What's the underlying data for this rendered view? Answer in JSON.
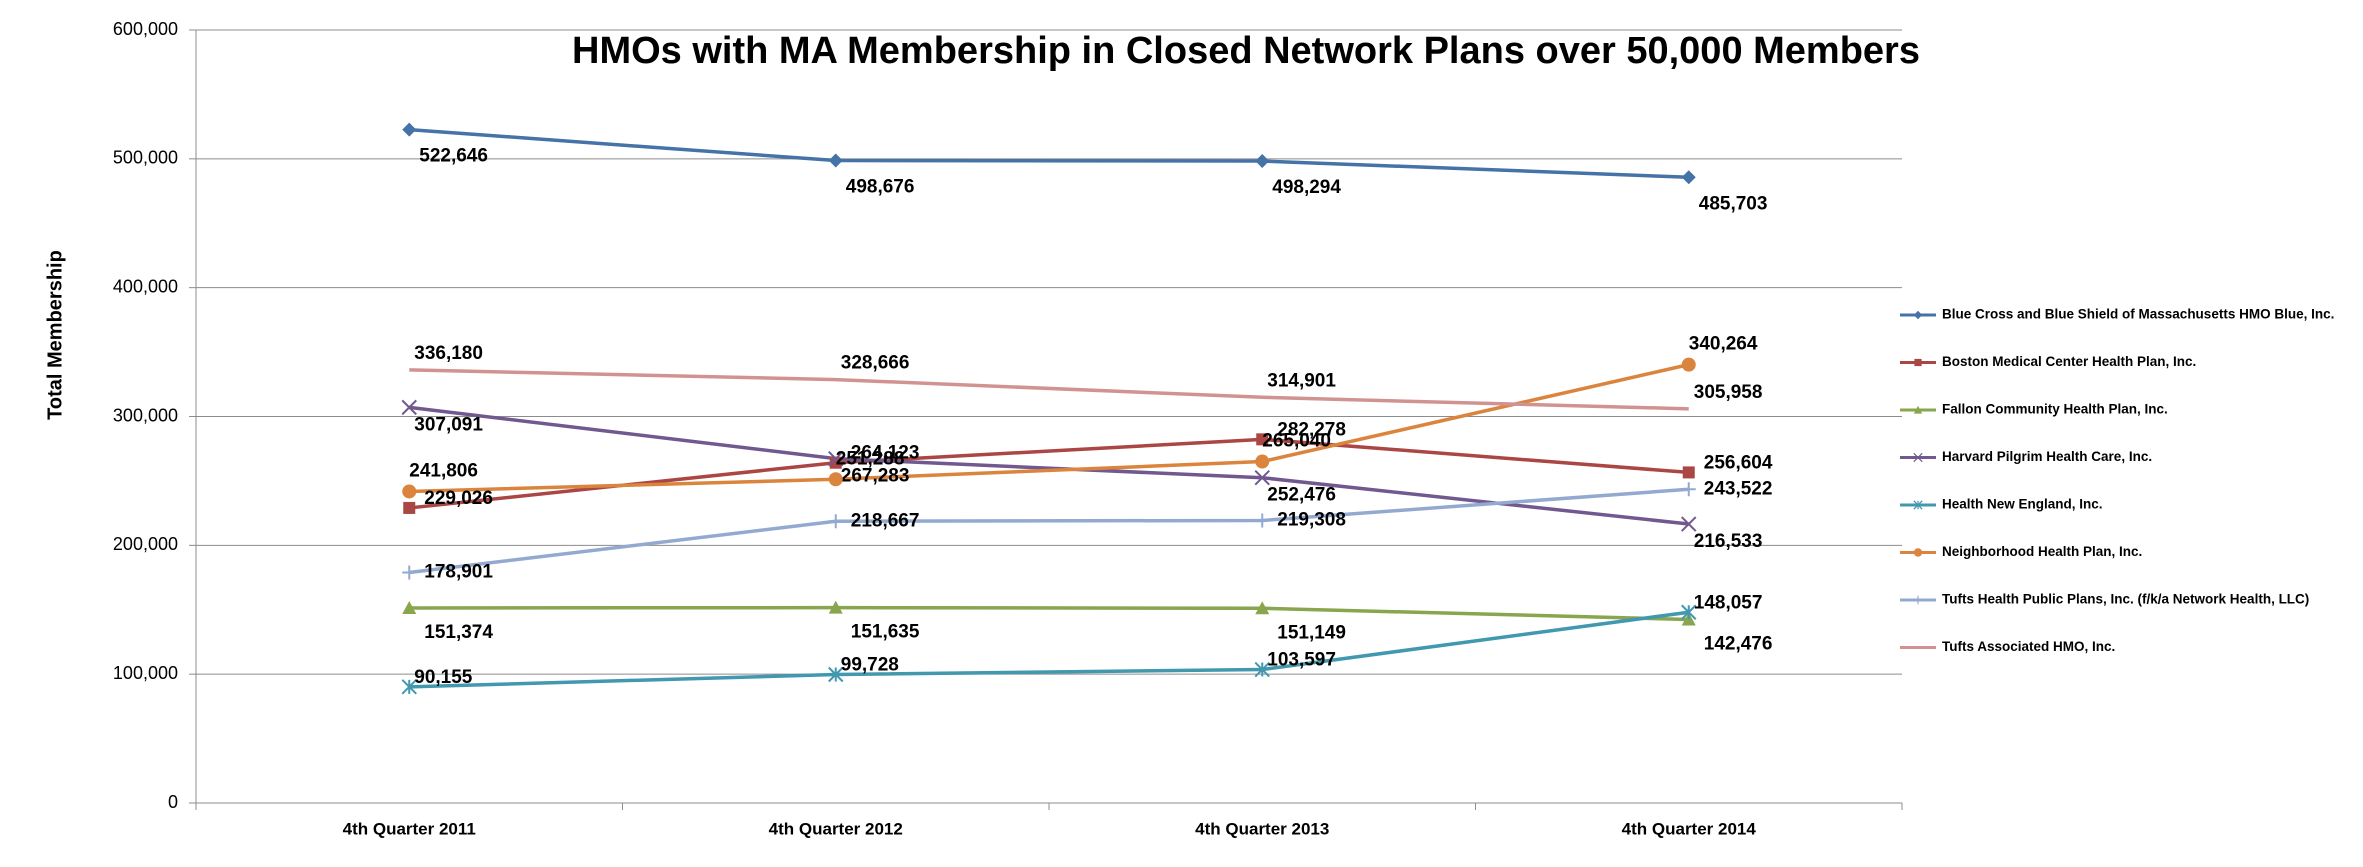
{
  "chart_data": {
    "type": "line",
    "title": "HMOs with MA Membership in Closed Network Plans over 50,000 Members",
    "y_label": "Total Membership",
    "categories": [
      "4th Quarter 2011",
      "4th Quarter 2012",
      "4th Quarter 2013",
      "4th Quarter 2014"
    ],
    "ylim": [
      0,
      600000
    ],
    "yticks": [
      {
        "value": 0,
        "label": "0"
      },
      {
        "value": 100000,
        "label": "100,000"
      },
      {
        "value": 200000,
        "label": "200,000"
      },
      {
        "value": 300000,
        "label": "300,000"
      },
      {
        "value": 400000,
        "label": "400,000"
      },
      {
        "value": 500000,
        "label": "500,000"
      },
      {
        "value": 600000,
        "label": "600,000"
      }
    ],
    "grid": true,
    "legend": "right",
    "series": [
      {
        "name": "Blue Cross and Blue Shield of Massachusetts HMO Blue, Inc.",
        "color": "#4572a7",
        "label_color": "#60609c",
        "marker": "diamond",
        "values": [
          522646,
          498676,
          498294,
          485703
        ],
        "value_labels": [
          "522,646",
          "498,676",
          "498,294",
          "485,703"
        ]
      },
      {
        "name": "Boston Medical Center Health Plan, Inc.",
        "color": "#aa4643",
        "label_color": "#8c5c5c",
        "marker": "square",
        "values": [
          229026,
          264123,
          282278,
          256604
        ],
        "value_labels": [
          "229,026",
          "264,123",
          "282,278",
          "256,604"
        ]
      },
      {
        "name": "Fallon Community Health Plan, Inc.",
        "color": "#89a54e",
        "label_color": "#9c9c2c",
        "marker": "triangle",
        "values": [
          151374,
          151635,
          151149,
          142476
        ],
        "value_labels": [
          "151,374",
          "151,635",
          "151,149",
          "142,476"
        ]
      },
      {
        "name": "Harvard Pilgrim Health Care, Inc.",
        "color": "#71588f",
        "label_color": "#5e5e9a",
        "marker": "x",
        "values": [
          307091,
          267283,
          252476,
          216533
        ],
        "value_labels": [
          "307,091",
          "267,283",
          "252,476",
          "216,533"
        ]
      },
      {
        "name": "Health New England, Inc.",
        "color": "#4198af",
        "label_color": "#1fc3f0",
        "marker": "star",
        "values": [
          90155,
          99728,
          103597,
          148057
        ],
        "value_labels": [
          "90,155",
          "99,728",
          "103,597",
          "148,057"
        ]
      },
      {
        "name": "Neighborhood Health Plan, Inc.",
        "color": "#db843d",
        "label_color": "#f08080",
        "marker": "circle",
        "values": [
          241806,
          251288,
          265040,
          340264
        ],
        "value_labels": [
          "241,806",
          "251,288",
          "265,040",
          "340,264"
        ]
      },
      {
        "name": "Tufts Health Public Plans, Inc. (f/k/a Network Health, LLC)",
        "color": "#93a9cf",
        "label_color": "#a8c8ee",
        "marker": "plus",
        "values": [
          178901,
          218667,
          219308,
          243522
        ],
        "value_labels": [
          "178,901",
          "218,667",
          "219,308",
          "243,522"
        ]
      },
      {
        "name": "Tufts Associated HMO, Inc.",
        "color": "#d19392",
        "label_color": "#f08080",
        "marker": "none",
        "values": [
          336180,
          328666,
          314901,
          305958
        ],
        "value_labels": [
          "336,180",
          "328,666",
          "314,901",
          "305,958"
        ]
      }
    ]
  }
}
